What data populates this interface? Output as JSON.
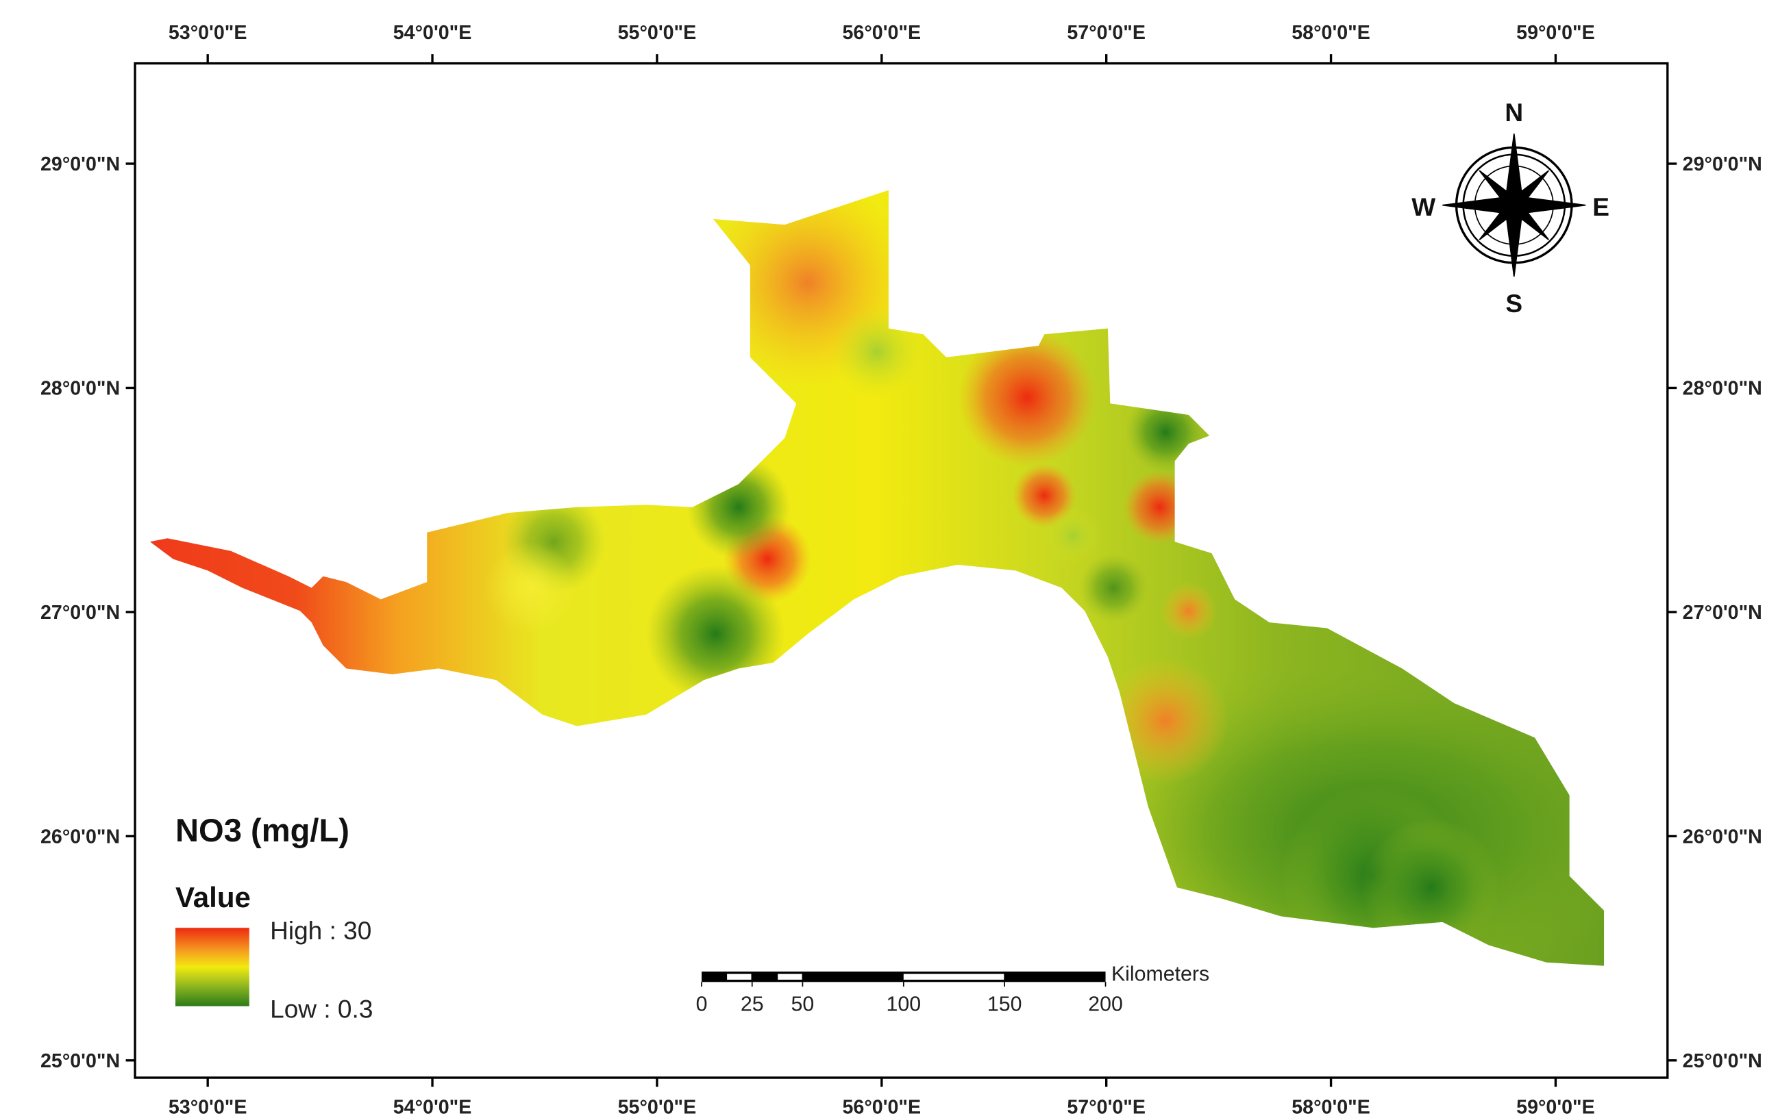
{
  "map": {
    "longitude_ticks": [
      {
        "value": 53,
        "label": "53°0'0\"E"
      },
      {
        "value": 54,
        "label": "54°0'0\"E"
      },
      {
        "value": 55,
        "label": "55°0'0\"E"
      },
      {
        "value": 56,
        "label": "56°0'0\"E"
      },
      {
        "value": 57,
        "label": "57°0'0\"E"
      },
      {
        "value": 58,
        "label": "58°0'0\"E"
      },
      {
        "value": 59,
        "label": "59°0'0\"E"
      }
    ],
    "latitude_ticks": [
      {
        "value": 29,
        "label": "29°0'0\"N"
      },
      {
        "value": 28,
        "label": "28°0'0\"N"
      },
      {
        "value": 27,
        "label": "27°0'0\"N"
      },
      {
        "value": 26,
        "label": "26°0'0\"N"
      },
      {
        "value": 25,
        "label": "25°0'0\"N"
      }
    ],
    "legend": {
      "title": "NO3 (mg/L)",
      "subtitle": "Value",
      "high": "High : 30",
      "low": "Low : 0.3"
    },
    "scale_bar": {
      "unit": "Kilometers",
      "ticks": [
        0,
        25,
        50,
        100,
        150,
        200
      ]
    },
    "compass": {
      "north": "N",
      "south": "S",
      "east": "E",
      "west": "W"
    }
  }
}
